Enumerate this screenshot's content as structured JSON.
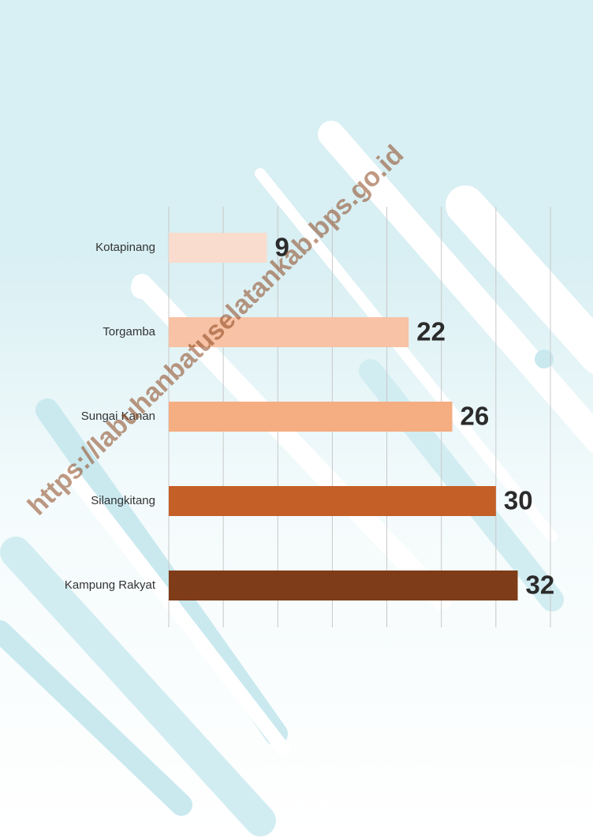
{
  "chart_data": {
    "type": "bar",
    "orientation": "horizontal",
    "categories": [
      "Kotapinang",
      "Torgamba",
      "Sungai Kanan",
      "Silangkitang",
      "Kampung Rakyat"
    ],
    "values": [
      9,
      22,
      26,
      30,
      32
    ],
    "colors": [
      "#f9dccd",
      "#f7c2a5",
      "#f5ad82",
      "#c45f27",
      "#7e3c18"
    ],
    "xlim": [
      0,
      35
    ],
    "xticks": [
      0,
      5,
      10,
      15,
      20,
      25,
      30,
      35
    ],
    "grid": true,
    "watermark": "https://labuhanbatuselatankab.bps.go.id"
  }
}
